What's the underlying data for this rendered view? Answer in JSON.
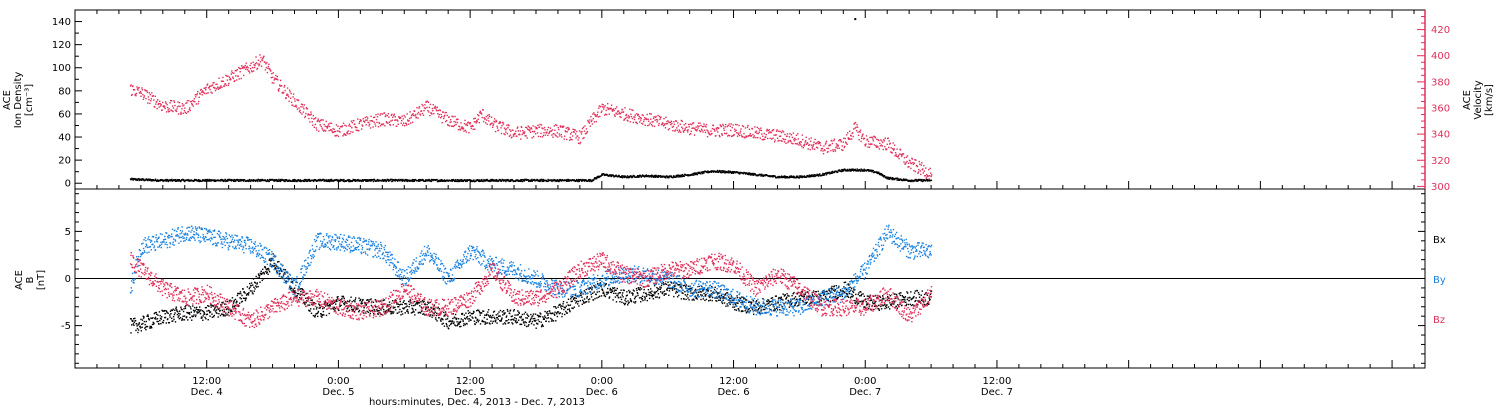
{
  "colors": {
    "density": "#000000",
    "velocity": "#e0305a",
    "bx": "#000000",
    "by": "#1a82e0",
    "bz": "#e0305a",
    "frame": "#000000"
  },
  "x_axis": {
    "title": "hours:minutes, Dec.  4, 2013 - Dec.  7, 2013",
    "range_hours": [
      0,
      123
    ],
    "ticks": [
      {
        "hour": 12,
        "time": "12:00",
        "day": "Dec. 4"
      },
      {
        "hour": 24,
        "time": "0:00",
        "day": "Dec. 5"
      },
      {
        "hour": 36,
        "time": "12:00",
        "day": "Dec. 5"
      },
      {
        "hour": 48,
        "time": "0:00",
        "day": "Dec. 6"
      },
      {
        "hour": 60,
        "time": "12:00",
        "day": "Dec. 6"
      },
      {
        "hour": 72,
        "time": "0:00",
        "day": "Dec. 7"
      },
      {
        "hour": 84,
        "time": "12:00",
        "day": "Dec. 7"
      }
    ]
  },
  "chart_data": [
    {
      "type": "scatter",
      "panel": "top",
      "left_axis": {
        "label_lines": [
          "ACE",
          "Ion Density",
          "[cm⁻³]"
        ],
        "ylim": [
          -5,
          150
        ],
        "ticks": [
          0,
          20,
          40,
          60,
          80,
          100,
          120,
          140
        ]
      },
      "right_axis": {
        "label_lines": [
          "ACE",
          "Velocity",
          "[km/s]"
        ],
        "ylim": [
          298,
          435
        ],
        "ticks": [
          300,
          320,
          340,
          360,
          380,
          400,
          420
        ]
      },
      "series": [
        {
          "key": "density",
          "axis": "left",
          "x_hours": [
            5,
            8,
            12,
            16,
            20,
            24,
            28,
            32,
            36,
            40,
            44,
            47,
            48,
            50,
            52,
            54,
            56,
            58,
            60,
            62,
            64,
            66,
            68,
            70,
            72,
            73,
            74,
            76,
            78
          ],
          "values": [
            4,
            3,
            3,
            3,
            3,
            3,
            3,
            3,
            3,
            3,
            3,
            3,
            8,
            6,
            7,
            6,
            8,
            11,
            10,
            8,
            6,
            6,
            8,
            12,
            12,
            10,
            5,
            3,
            3
          ]
        },
        {
          "key": "velocity",
          "axis": "right",
          "x_hours": [
            5,
            6,
            8,
            10,
            12,
            14,
            16,
            17,
            18,
            20,
            22,
            24,
            26,
            28,
            30,
            32,
            34,
            36,
            37,
            38,
            40,
            42,
            44,
            46,
            47,
            48,
            50,
            52,
            54,
            56,
            58,
            60,
            62,
            64,
            66,
            68,
            70,
            71,
            72,
            74,
            75,
            76,
            78
          ],
          "values": [
            375,
            372,
            362,
            360,
            375,
            383,
            392,
            398,
            383,
            365,
            348,
            343,
            348,
            352,
            350,
            361,
            351,
            345,
            356,
            348,
            341,
            343,
            343,
            338,
            350,
            360,
            356,
            352,
            348,
            345,
            343,
            344,
            341,
            339,
            336,
            330,
            333,
            345,
            335,
            333,
            325,
            318,
            310
          ]
        }
      ],
      "annotations": [
        {
          "text": "·",
          "x_hours": 71,
          "value": 143
        }
      ]
    },
    {
      "type": "scatter",
      "panel": "bottom",
      "left_axis": {
        "label_lines": [
          "ACE",
          "B",
          "[nT]"
        ],
        "ylim": [
          -9.5,
          9.5
        ],
        "ticks": [
          -5,
          0,
          5
        ]
      },
      "legend": {
        "placement": "right",
        "entries": [
          "Bx",
          "By",
          "Bz"
        ]
      },
      "zero_line": true,
      "series": [
        {
          "key": "bx",
          "name": "Bx",
          "x_hours": [
            5,
            6,
            8,
            10,
            12,
            14,
            16,
            18,
            20,
            22,
            24,
            26,
            28,
            30,
            32,
            34,
            36,
            38,
            40,
            42,
            44,
            46,
            48,
            50,
            52,
            54,
            56,
            58,
            60,
            62,
            64,
            66,
            68,
            70,
            72,
            74,
            76,
            78
          ],
          "values": [
            -5,
            -4.8,
            -4,
            -3.6,
            -3.6,
            -3,
            -1,
            2,
            -1,
            -3.5,
            -2.5,
            -2.8,
            -3,
            -3,
            -3,
            -4.5,
            -4,
            -4,
            -4,
            -4.5,
            -3.5,
            -2,
            -1,
            -2,
            -1.5,
            -1,
            -1.5,
            -1.5,
            -2.5,
            -3,
            -2.5,
            -2,
            -2,
            -1,
            -2.5,
            -2.5,
            -2,
            -2
          ]
        },
        {
          "key": "by",
          "name": "By",
          "x_hours": [
            5,
            6,
            8,
            10,
            12,
            14,
            16,
            18,
            20,
            22,
            24,
            26,
            28,
            30,
            32,
            34,
            36,
            38,
            40,
            42,
            44,
            46,
            48,
            50,
            52,
            54,
            56,
            58,
            60,
            62,
            64,
            66,
            68,
            70,
            72,
            74,
            76,
            78
          ],
          "values": [
            -1,
            3.5,
            4,
            5,
            4.5,
            4,
            3.5,
            2,
            -1,
            4,
            4,
            3.5,
            3,
            0,
            3,
            0,
            3,
            1.5,
            1,
            0,
            -1,
            -1,
            0,
            0.5,
            0.5,
            0,
            -1,
            -1,
            -2,
            -3,
            -3,
            -3,
            -2,
            -1.5,
            1,
            5,
            3,
            3
          ]
        },
        {
          "key": "bz",
          "name": "Bz",
          "x_hours": [
            5,
            6,
            8,
            10,
            12,
            14,
            16,
            18,
            20,
            22,
            24,
            26,
            28,
            30,
            32,
            34,
            36,
            38,
            40,
            42,
            44,
            46,
            48,
            50,
            52,
            54,
            56,
            58,
            60,
            62,
            64,
            66,
            68,
            70,
            72,
            74,
            76,
            78
          ],
          "values": [
            2,
            1,
            -1,
            -2,
            -1.5,
            -3,
            -4.5,
            -3,
            -2,
            -2,
            -3,
            -3.5,
            -3,
            -1,
            -3,
            -3,
            -2,
            1,
            -2,
            -2,
            -1,
            1,
            2,
            0.5,
            0,
            1,
            1,
            2,
            1.5,
            -1,
            0.5,
            -1,
            -3,
            -3,
            -3,
            -1.5,
            -4,
            -1.5
          ]
        }
      ]
    }
  ]
}
